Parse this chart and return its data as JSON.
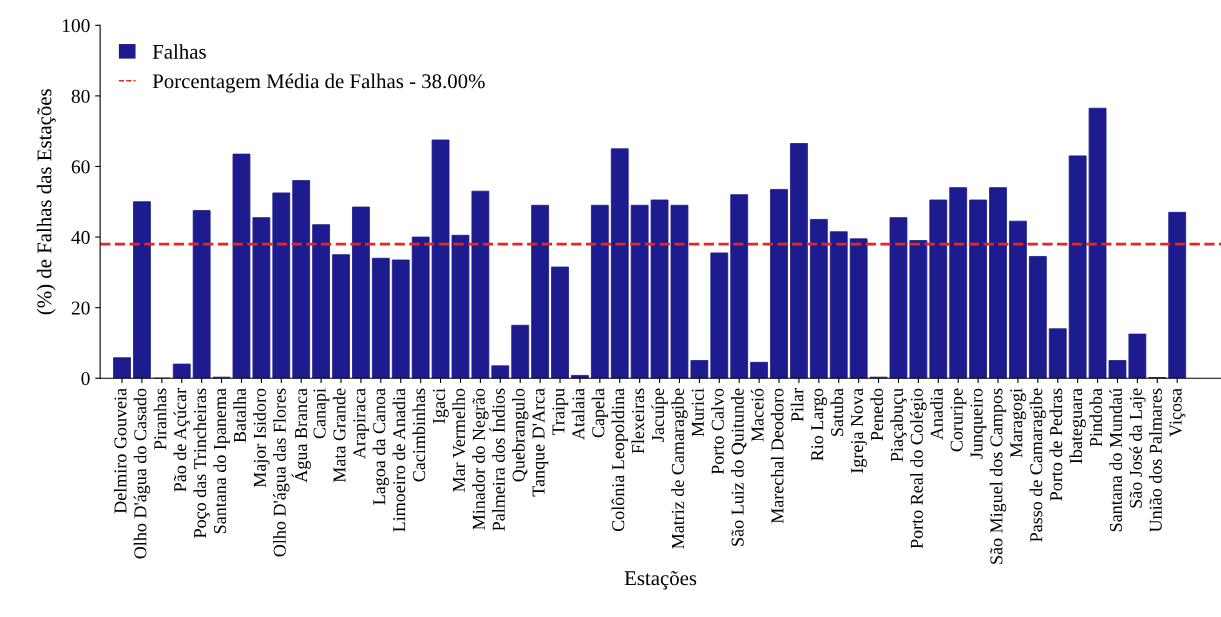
{
  "chart_data": {
    "type": "bar",
    "xlabel": "Estações",
    "ylabel": "(%) de Falhas das Estações",
    "categories": [
      "Delmiro Gouveia",
      "Olho D'água do Casado",
      "Piranhas",
      "Pão de Açúcar",
      "Poço das Trincheiras",
      "Santana do Ipanema",
      "Batalha",
      "Major Isidoro",
      "Olho D'água das Flores",
      "Água Branca",
      "Canapi",
      "Mata Grande",
      "Arapiraca",
      "Lagoa da Canoa",
      "Limoeiro de Anadia",
      "Cacimbinhas",
      "Igaci",
      "Mar Vermelho",
      "Minador do Negrão",
      "Palmeira dos Índios",
      "Quebrangulo",
      "Tanque D'Arca",
      "Traipu",
      "Atalaia",
      "Capela",
      "Colônia Leopoldina",
      "Flexeiras",
      "Jacuípe",
      "Matriz de Camaragibe",
      "Murici",
      "Porto Calvo",
      "São Luiz do Quitunde",
      "Maceió",
      "Marechal Deodoro",
      "Pilar",
      "Rio Largo",
      "Satuba",
      "Igreja Nova",
      "Penedo",
      "Piaçabuçu",
      "Porto Real do Colégio",
      "Anadia",
      "Coruripe",
      "Junqueiro",
      "São Miguel dos Campos",
      "Maragogi",
      "Passo de Camaragibe",
      "Porto de Pedras",
      "Ibateguara",
      "Pindoba",
      "Santana do Mundaú",
      "São José da Laje",
      "União dos Palmares",
      "Viçosa"
    ],
    "series": [
      {
        "name": "Falhas",
        "color": "#1c1c8e",
        "values": [
          5.8,
          50,
          0,
          4,
          47.5,
          0.3,
          63.5,
          45.5,
          52.5,
          56,
          43.5,
          35,
          48.5,
          34,
          33.5,
          40,
          67.5,
          40.5,
          53,
          3.5,
          15,
          49,
          31.5,
          0.8,
          49,
          65,
          49,
          50.5,
          49,
          5,
          35.5,
          52,
          4.5,
          53.5,
          66.5,
          45,
          41.5,
          39.5,
          0.3,
          45.5,
          39,
          50.5,
          54,
          50.5,
          54,
          44.5,
          34.5,
          14,
          63,
          76.5,
          5,
          12.5,
          0.2,
          47
        ]
      }
    ],
    "ylim": [
      0,
      100
    ],
    "yticks": [
      0,
      20,
      40,
      60,
      80,
      100
    ],
    "ref_lines": [
      {
        "axis": "y",
        "value": 38,
        "label": "Porcentagem Média de Falhas - 38.00%",
        "color": "#e8261e",
        "line_style": "dashed"
      }
    ],
    "legend": "top left",
    "grid": false
  }
}
